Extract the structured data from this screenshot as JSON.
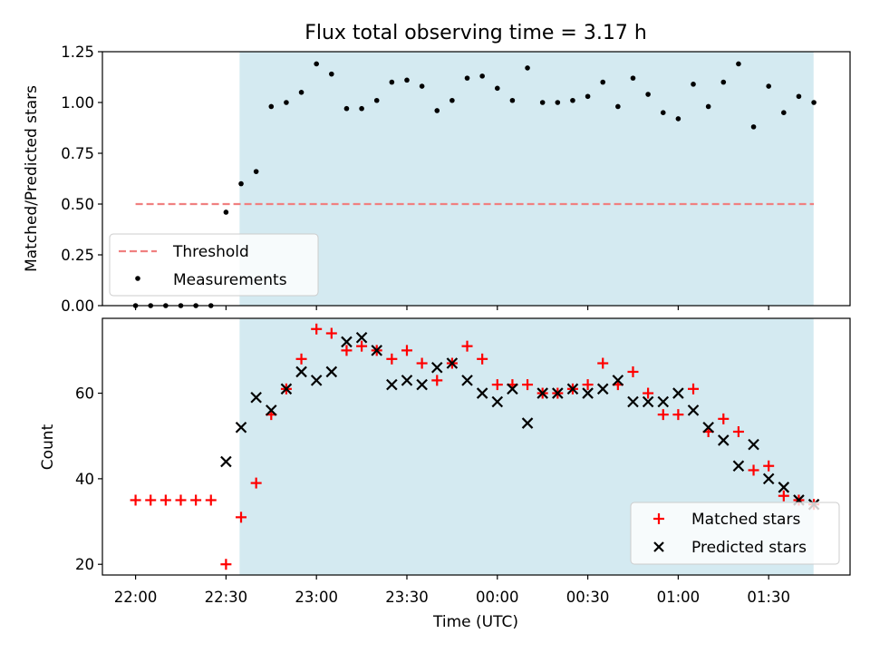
{
  "chart_data": [
    {
      "type": "scatter",
      "title": "Flux total observing time = 3.17 h",
      "xlabel": "",
      "ylabel": "Matched/Predicted stars",
      "ylim": [
        0,
        1.25
      ],
      "yticks": [
        0,
        0.25,
        0.5,
        0.75,
        1.0,
        1.25
      ],
      "ytick_labels": [
        "0.00",
        "0.25",
        "0.50",
        "0.75",
        "1.00",
        "1.25"
      ],
      "xlim": [
        -4,
        244
      ],
      "xticks": [
        7,
        37,
        67,
        97,
        127,
        157,
        187,
        217
      ],
      "xtick_labels": [
        "",
        "",
        "",
        "",
        "",
        "",
        "",
        ""
      ],
      "shade": {
        "start": 41.5,
        "end": 231.9,
        "color": "#d4eaf1"
      },
      "threshold": {
        "name": "Threshold",
        "value": 0.5,
        "x_start": 7,
        "x_end": 232,
        "color": "#f08080"
      },
      "legend": {
        "position": "lower-left",
        "entries": [
          "Threshold",
          "Measurements"
        ]
      },
      "series": [
        {
          "name": "Measurements",
          "color": "#000000",
          "x": [
            7,
            12,
            17,
            22,
            27,
            32,
            37,
            42,
            47,
            52,
            57,
            62,
            67,
            72,
            77,
            82,
            87,
            92,
            97,
            102,
            107,
            112,
            117,
            122,
            127,
            132,
            137,
            142,
            147,
            152,
            157,
            162,
            167,
            172,
            177,
            182,
            187,
            192,
            197,
            202,
            207,
            212,
            217,
            222,
            227,
            232
          ],
          "values": [
            0,
            0,
            0,
            0,
            0,
            0,
            0.46,
            0.6,
            0.66,
            0.98,
            1.0,
            1.05,
            1.19,
            1.14,
            0.97,
            0.97,
            1.01,
            1.1,
            1.11,
            1.08,
            0.96,
            1.01,
            1.12,
            1.13,
            1.07,
            1.01,
            1.17,
            1.0,
            1.0,
            1.01,
            1.03,
            1.1,
            0.98,
            1.12,
            1.04,
            0.95,
            0.92,
            1.09,
            0.98,
            1.1,
            1.19,
            0.88,
            1.08,
            0.95,
            1.03,
            1.0
          ]
        }
      ]
    },
    {
      "type": "scatter",
      "title": "",
      "xlabel": "Time (UTC)",
      "ylabel": "Count",
      "ylim": [
        17.5,
        77.5
      ],
      "yticks": [
        20,
        40,
        60
      ],
      "ytick_labels": [
        "20",
        "40",
        "60"
      ],
      "xlim": [
        -4,
        244
      ],
      "xticks": [
        7,
        37,
        67,
        97,
        127,
        157,
        187,
        217
      ],
      "xtick_labels": [
        "22:00",
        "22:30",
        "23:00",
        "23:30",
        "00:00",
        "00:30",
        "01:00",
        "01:30"
      ],
      "shade": {
        "start": 41.5,
        "end": 231.9,
        "color": "#d4eaf1"
      },
      "legend": {
        "position": "lower-right",
        "entries": [
          "Matched stars",
          "Predicted stars"
        ]
      },
      "series": [
        {
          "name": "Matched stars",
          "color": "#ff0000",
          "marker": "plus",
          "x": [
            7,
            12,
            17,
            22,
            27,
            32,
            37,
            42,
            47,
            52,
            57,
            62,
            67,
            72,
            77,
            82,
            87,
            92,
            97,
            102,
            107,
            112,
            117,
            122,
            127,
            132,
            137,
            142,
            147,
            152,
            157,
            162,
            167,
            172,
            177,
            182,
            187,
            192,
            197,
            202,
            207,
            212,
            217,
            222,
            227,
            232
          ],
          "values": [
            35,
            35,
            35,
            35,
            35,
            35,
            20,
            31,
            39,
            55,
            61,
            68,
            75,
            74,
            70,
            71,
            70,
            68,
            70,
            67,
            63,
            67,
            71,
            68,
            62,
            62,
            62,
            60,
            60,
            61,
            62,
            67,
            62,
            65,
            60,
            55,
            55,
            61,
            51,
            54,
            51,
            42,
            43,
            36,
            35,
            34
          ]
        },
        {
          "name": "Predicted stars",
          "color": "#000000",
          "marker": "x",
          "x": [
            37,
            42,
            47,
            52,
            57,
            62,
            67,
            72,
            77,
            82,
            87,
            92,
            97,
            102,
            107,
            112,
            117,
            122,
            127,
            132,
            137,
            142,
            147,
            152,
            157,
            162,
            167,
            172,
            177,
            182,
            187,
            192,
            197,
            202,
            207,
            212,
            217,
            222,
            227,
            232
          ],
          "values": [
            44,
            52,
            59,
            56,
            61,
            65,
            63,
            65,
            72,
            73,
            70,
            62,
            63,
            62,
            66,
            67,
            63,
            60,
            58,
            61,
            53,
            60,
            60,
            61,
            60,
            61,
            63,
            58,
            58,
            58,
            60,
            56,
            52,
            49,
            43,
            48,
            40,
            38,
            35,
            34
          ]
        }
      ]
    }
  ]
}
